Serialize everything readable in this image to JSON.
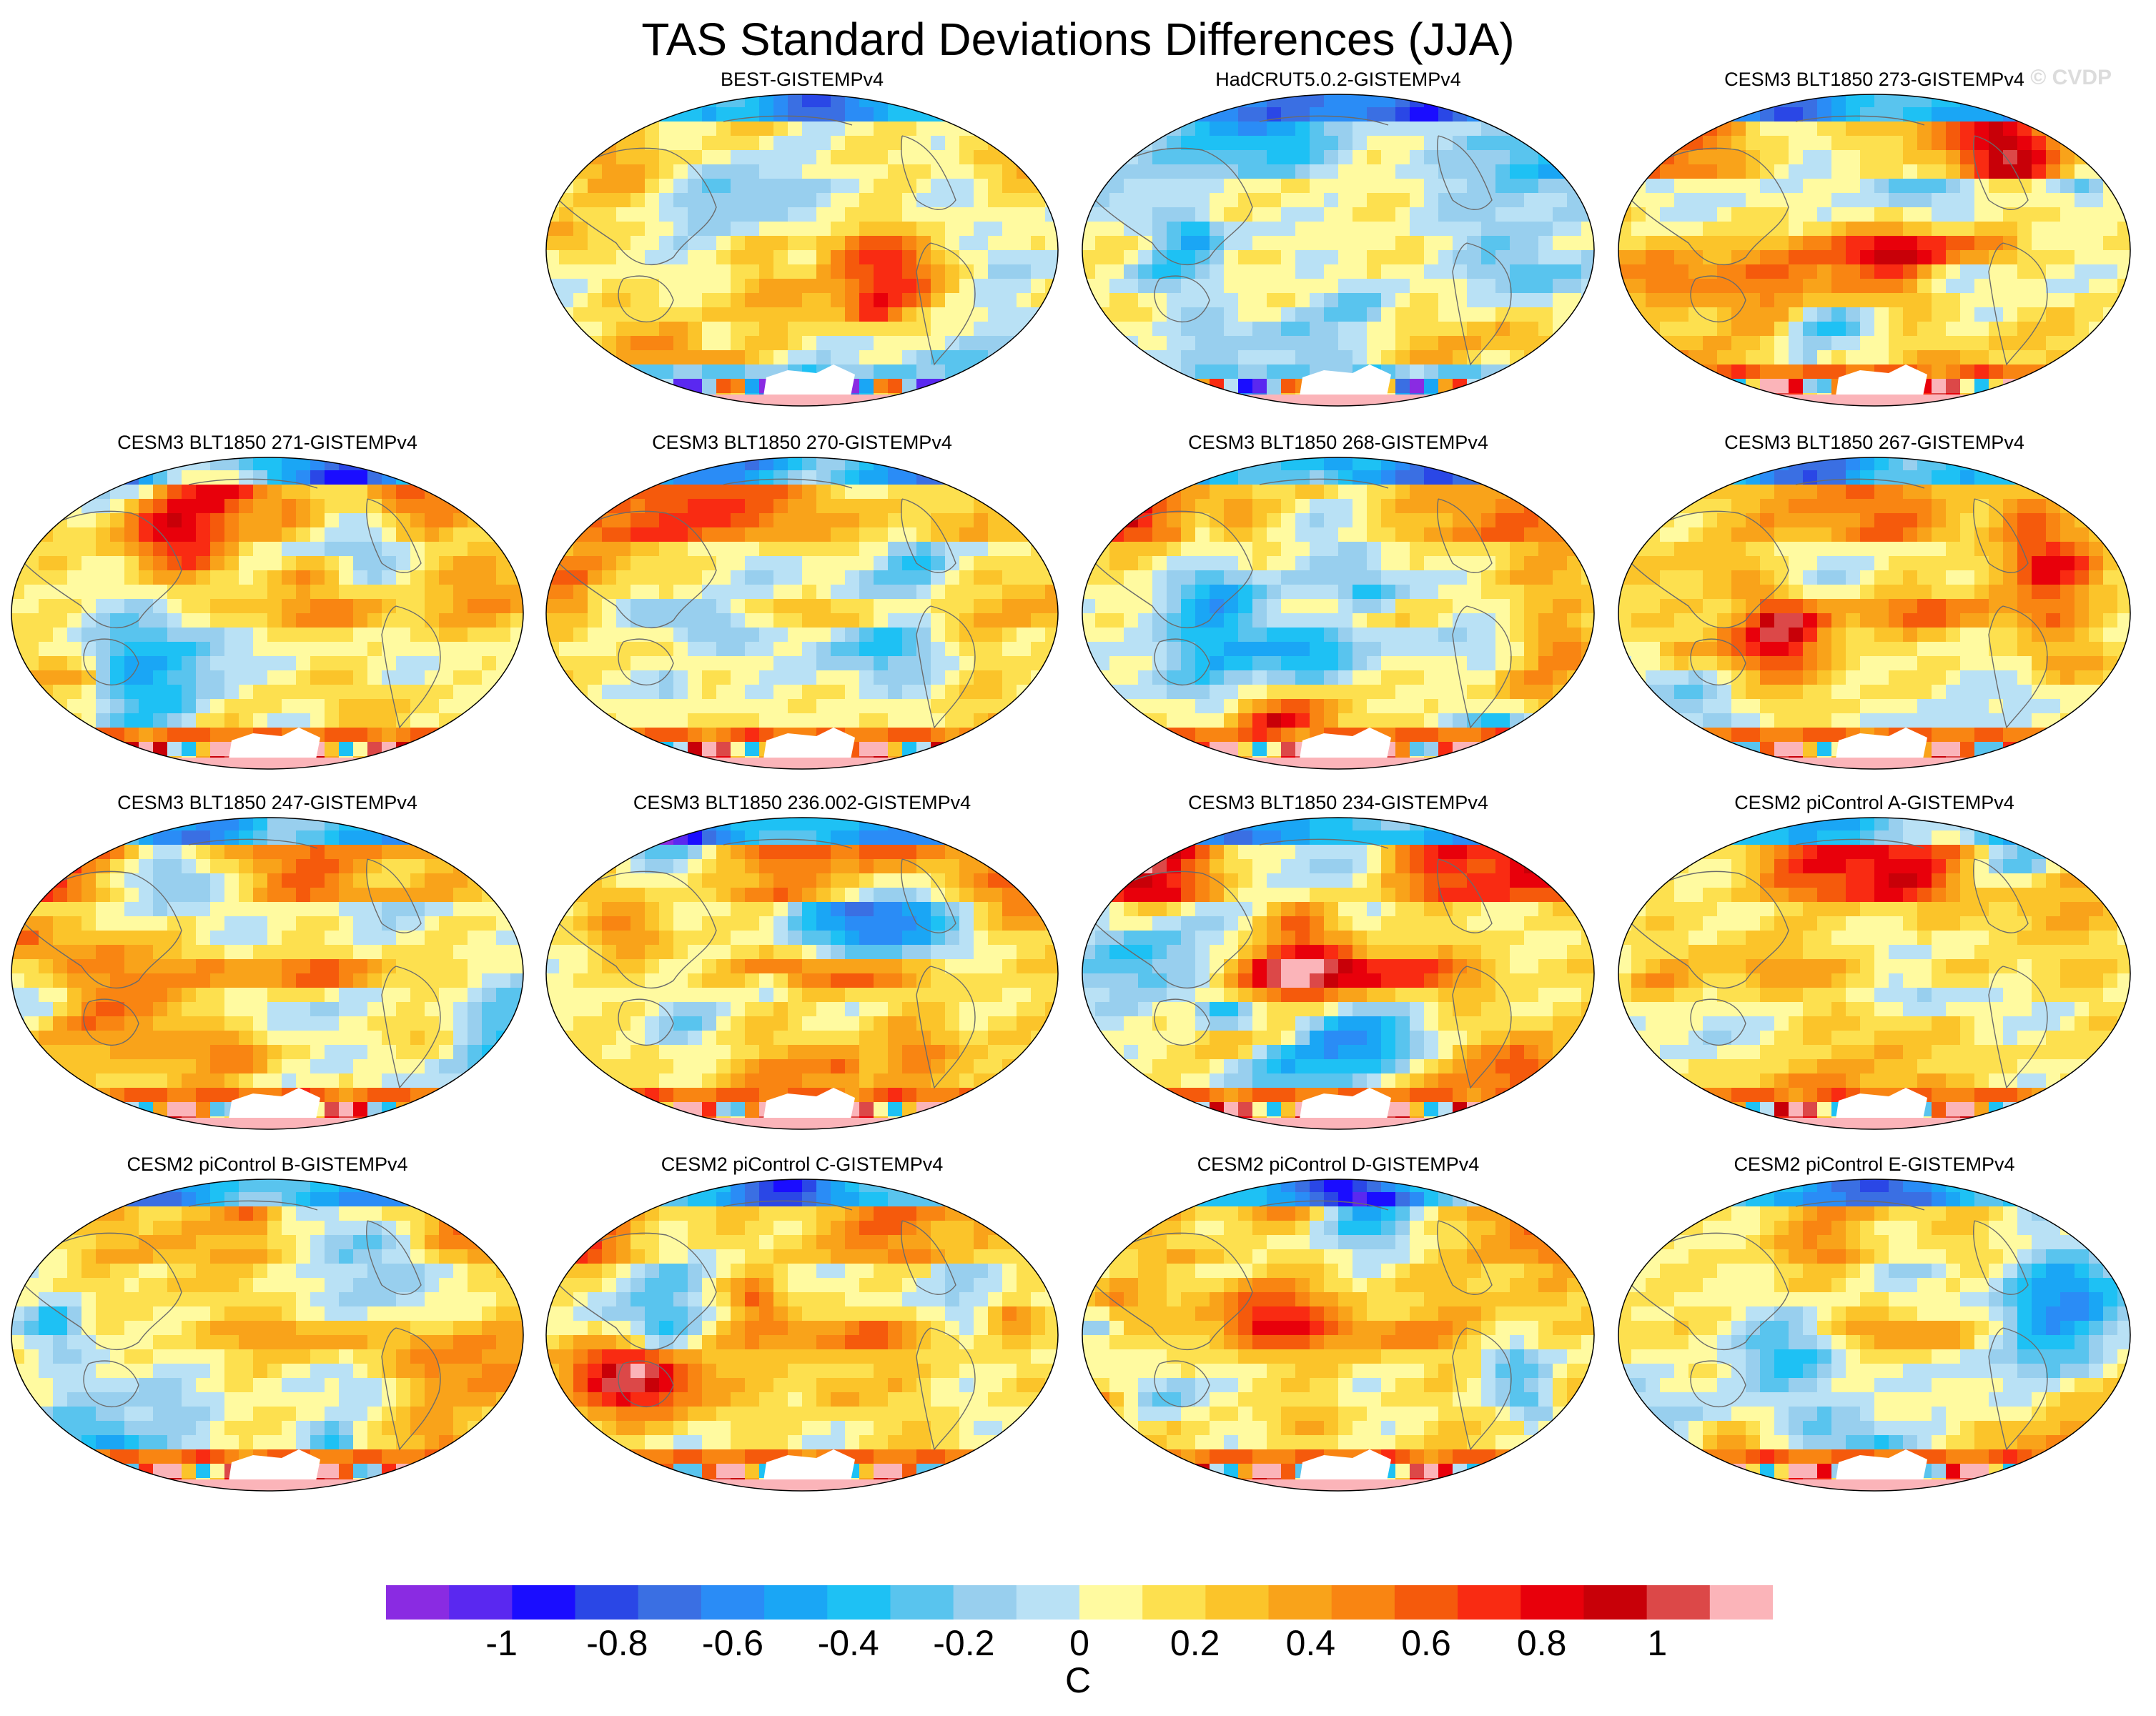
{
  "title": "TAS Standard Deviations Differences (JJA)",
  "watermark": "© CVDP",
  "panels": [
    {
      "label": "BEST-GISTEMPv4",
      "row": 0,
      "col": 1,
      "seed": 3,
      "warm": 0.05,
      "style": "obs"
    },
    {
      "label": "HadCRUT5.0.2-GISTEMPv4",
      "row": 0,
      "col": 2,
      "seed": 7,
      "warm": -0.15,
      "style": "obs"
    },
    {
      "label": "CESM3 BLT1850 273-GISTEMPv4",
      "row": 0,
      "col": 3,
      "seed": 11,
      "warm": 0.45,
      "style": "model"
    },
    {
      "label": "CESM3 BLT1850 271-GISTEMPv4",
      "row": 1,
      "col": 0,
      "seed": 13,
      "warm": 0.2,
      "style": "model"
    },
    {
      "label": "CESM3 BLT1850 270-GISTEMPv4",
      "row": 1,
      "col": 1,
      "seed": 17,
      "warm": 0.3,
      "style": "model"
    },
    {
      "label": "CESM3 BLT1850 268-GISTEMPv4",
      "row": 1,
      "col": 2,
      "seed": 19,
      "warm": 0.25,
      "style": "model"
    },
    {
      "label": "CESM3 BLT1850 267-GISTEMPv4",
      "row": 1,
      "col": 3,
      "seed": 23,
      "warm": 0.28,
      "style": "model"
    },
    {
      "label": "CESM3 BLT1850 247-GISTEMPv4",
      "row": 2,
      "col": 0,
      "seed": 29,
      "warm": 0.45,
      "style": "model"
    },
    {
      "label": "CESM3 BLT1850 236.002-GISTEMPv4",
      "row": 2,
      "col": 1,
      "seed": 31,
      "warm": 0.45,
      "style": "model"
    },
    {
      "label": "CESM3 BLT1850 234-GISTEMPv4",
      "row": 2,
      "col": 2,
      "seed": 37,
      "warm": 0.4,
      "style": "model"
    },
    {
      "label": "CESM2 piControl A-GISTEMPv4",
      "row": 2,
      "col": 3,
      "seed": 41,
      "warm": 0.25,
      "style": "model"
    },
    {
      "label": "CESM2 piControl B-GISTEMPv4",
      "row": 3,
      "col": 0,
      "seed": 43,
      "warm": 0.15,
      "style": "model"
    },
    {
      "label": "CESM2 piControl C-GISTEMPv4",
      "row": 3,
      "col": 1,
      "seed": 47,
      "warm": 0.3,
      "style": "model"
    },
    {
      "label": "CESM2 piControl D-GISTEMPv4",
      "row": 3,
      "col": 2,
      "seed": 53,
      "warm": 0.15,
      "style": "model"
    },
    {
      "label": "CESM2 piControl E-GISTEMPv4",
      "row": 3,
      "col": 3,
      "seed": 59,
      "warm": 0.2,
      "style": "model"
    }
  ],
  "colorbar": {
    "units": "C",
    "min": -1.2,
    "max": 1.2,
    "step": 0.1,
    "colors": [
      "#8a2be2",
      "#5a28f0",
      "#1a0dff",
      "#2a47e6",
      "#3a6fe3",
      "#2a8cf6",
      "#1aa6f5",
      "#1ec1f4",
      "#59c4ee",
      "#98cfee",
      "#b9e1f5",
      "#fffaa0",
      "#fde04f",
      "#fbc42a",
      "#f9a31a",
      "#f98512",
      "#f55a0c",
      "#f92b12",
      "#e8000b",
      "#c80008",
      "#dc4848",
      "#fbb4b9"
    ],
    "ticks": [
      {
        "label": "-1",
        "value": -1.0
      },
      {
        "label": "-0.8",
        "value": -0.8
      },
      {
        "label": "-0.6",
        "value": -0.6
      },
      {
        "label": "-0.4",
        "value": -0.4
      },
      {
        "label": "-0.2",
        "value": -0.2
      },
      {
        "label": "0",
        "value": 0.0
      },
      {
        "label": "0.2",
        "value": 0.2
      },
      {
        "label": "0.4",
        "value": 0.4
      },
      {
        "label": "0.6",
        "value": 0.6
      },
      {
        "label": "0.8",
        "value": 0.8
      },
      {
        "label": "1",
        "value": 1.0
      }
    ]
  }
}
